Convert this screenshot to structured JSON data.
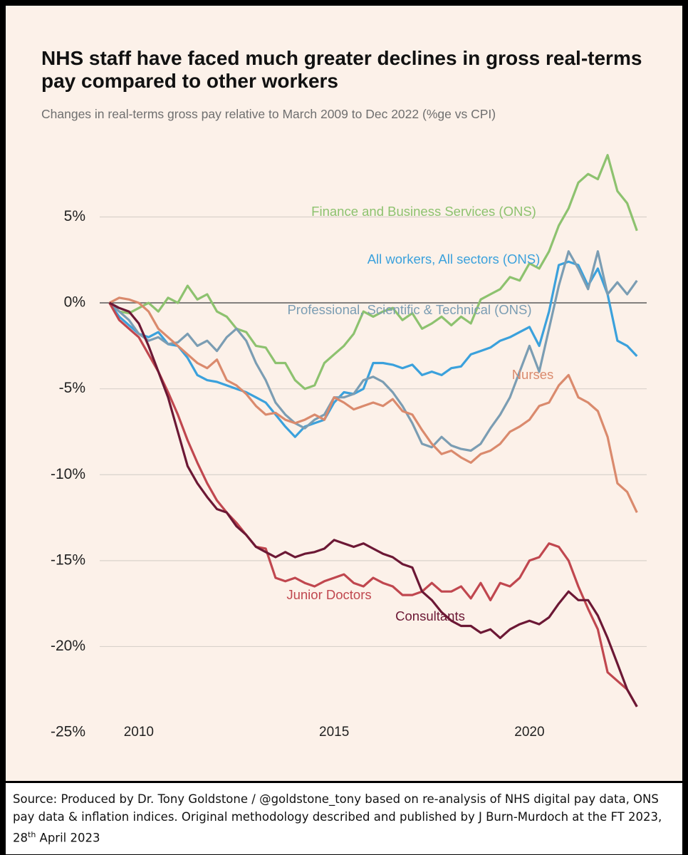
{
  "chart_data": {
    "type": "line",
    "title": "NHS staff have faced much greater declines in gross real-terms pay compared to other workers",
    "subtitle": "Changes in real-terms gross pay relative to March 2009 to Dec 2022 (%ge vs CPI)",
    "source": [
      "Source: Produced by Dr. Tony Goldstone / @goldstone_tony based on re-analysis of NHS digital pay data, ONS pay data & inflation indices. Original methodology described and published by J Burn-Murdoch at the FT 2023, 28",
      "th",
      " April 2023"
    ],
    "x": [
      2009.25,
      2009.5,
      2009.75,
      2010,
      2010.25,
      2010.5,
      2010.75,
      2011,
      2011.25,
      2011.5,
      2011.75,
      2012,
      2012.25,
      2012.5,
      2012.75,
      2013,
      2013.25,
      2013.5,
      2013.75,
      2014,
      2014.25,
      2014.5,
      2014.75,
      2015,
      2015.25,
      2015.5,
      2015.75,
      2016,
      2016.25,
      2016.5,
      2016.75,
      2017,
      2017.25,
      2017.5,
      2017.75,
      2018,
      2018.25,
      2018.5,
      2018.75,
      2019,
      2019.25,
      2019.5,
      2019.75,
      2020,
      2020.25,
      2020.5,
      2020.75,
      2021,
      2021.25,
      2021.5,
      2021.75,
      2022,
      2022.25,
      2022.5,
      2022.75
    ],
    "series": [
      {
        "name": "Finance and Business Services (ONS)",
        "color": "#8dc26f",
        "values": [
          0,
          -0.5,
          -0.6,
          -0.3,
          0,
          -0.5,
          0.3,
          0,
          1.0,
          0.2,
          0.5,
          -0.5,
          -0.8,
          -1.5,
          -1.7,
          -2.5,
          -2.6,
          -3.5,
          -3.5,
          -4.5,
          -5.0,
          -4.8,
          -3.5,
          -3.0,
          -2.5,
          -1.8,
          -0.5,
          -0.8,
          -0.5,
          -0.3,
          -1.0,
          -0.6,
          -1.5,
          -1.2,
          -0.8,
          -1.3,
          -0.8,
          -1.2,
          0.2,
          0.5,
          0.8,
          1.5,
          1.3,
          2.3,
          2.0,
          3.0,
          4.5,
          5.5,
          7.0,
          7.5,
          7.2,
          8.6,
          6.5,
          5.8,
          4.2
        ]
      },
      {
        "name": "All workers, All sectors (ONS)",
        "color": "#3ba1dc",
        "values": [
          0,
          -0.8,
          -1.3,
          -1.8,
          -2.0,
          -1.7,
          -2.4,
          -2.5,
          -3.2,
          -4.2,
          -4.5,
          -4.6,
          -4.8,
          -5.0,
          -5.2,
          -5.5,
          -5.8,
          -6.5,
          -7.2,
          -7.8,
          -7.2,
          -7.0,
          -6.8,
          -5.8,
          -5.2,
          -5.3,
          -5.0,
          -3.5,
          -3.5,
          -3.6,
          -3.8,
          -3.6,
          -4.2,
          -4.0,
          -4.2,
          -3.8,
          -3.7,
          -3.0,
          -2.8,
          -2.6,
          -2.2,
          -2.0,
          -1.7,
          -1.4,
          -2.5,
          -0.5,
          2.2,
          2.4,
          2.2,
          1.0,
          2.0,
          0.5,
          -2.2,
          -2.5,
          -3.1
        ]
      },
      {
        "name": "Professional, Scientific & Technical (ONS)",
        "color": "#7b9db3",
        "values": [
          0,
          -0.5,
          -1.0,
          -1.8,
          -2.2,
          -2.0,
          -2.4,
          -2.3,
          -1.8,
          -2.5,
          -2.2,
          -2.8,
          -2.0,
          -1.5,
          -2.2,
          -3.5,
          -4.5,
          -5.8,
          -6.5,
          -7.0,
          -7.3,
          -6.8,
          -6.5,
          -5.5,
          -5.5,
          -5.3,
          -4.5,
          -4.3,
          -4.6,
          -5.2,
          -6.0,
          -7.0,
          -8.2,
          -8.4,
          -7.8,
          -8.3,
          -8.5,
          -8.6,
          -8.2,
          -7.3,
          -6.5,
          -5.5,
          -4.0,
          -2.5,
          -4.0,
          -1.5,
          1.0,
          3.0,
          2.0,
          0.8,
          3.0,
          0.5,
          1.2,
          0.5,
          1.3
        ]
      },
      {
        "name": "Nurses",
        "color": "#da8a6d",
        "values": [
          0,
          0.3,
          0.2,
          0,
          -0.5,
          -1.5,
          -2.0,
          -2.5,
          -3.0,
          -3.5,
          -3.8,
          -3.3,
          -4.5,
          -4.8,
          -5.3,
          -6.0,
          -6.5,
          -6.4,
          -6.8,
          -7.0,
          -6.8,
          -6.5,
          -6.8,
          -5.5,
          -5.8,
          -6.2,
          -6.0,
          -5.8,
          -6.0,
          -5.6,
          -6.3,
          -6.5,
          -7.4,
          -8.2,
          -8.8,
          -8.6,
          -9.0,
          -9.3,
          -8.8,
          -8.6,
          -8.2,
          -7.5,
          -7.2,
          -6.8,
          -6.0,
          -5.8,
          -4.8,
          -4.2,
          -5.5,
          -5.8,
          -6.3,
          -7.8,
          -10.5,
          -11.0,
          -12.2
        ]
      },
      {
        "name": "Junior Doctors",
        "color": "#c0474f",
        "values": [
          0,
          -1.0,
          -1.5,
          -2.0,
          -3.0,
          -4.0,
          -5.2,
          -6.5,
          -8.0,
          -9.3,
          -10.5,
          -11.5,
          -12.2,
          -12.8,
          -13.5,
          -14.2,
          -14.3,
          -16.0,
          -16.2,
          -16.0,
          -16.3,
          -16.5,
          -16.2,
          -16.0,
          -15.8,
          -16.3,
          -16.5,
          -16.0,
          -16.3,
          -16.5,
          -17.0,
          -17.0,
          -16.8,
          -16.3,
          -16.8,
          -16.8,
          -16.5,
          -17.2,
          -16.3,
          -17.3,
          -16.3,
          -16.5,
          -16.0,
          -15.0,
          -14.8,
          -14.0,
          -14.2,
          -15.0,
          -16.5,
          -17.8,
          -19.0,
          -21.5,
          -22.0,
          -22.5,
          -23.5
        ]
      },
      {
        "name": "Consultants",
        "color": "#6c1835",
        "values": [
          0,
          -0.3,
          -0.5,
          -1.2,
          -2.5,
          -4.0,
          -5.5,
          -7.5,
          -9.5,
          -10.5,
          -11.3,
          -12.0,
          -12.2,
          -13.0,
          -13.5,
          -14.2,
          -14.5,
          -14.8,
          -14.5,
          -14.8,
          -14.6,
          -14.5,
          -14.3,
          -13.8,
          -14.0,
          -14.2,
          -14.0,
          -14.3,
          -14.6,
          -14.8,
          -15.2,
          -15.4,
          -16.8,
          -17.3,
          -18.0,
          -18.5,
          -18.8,
          -18.8,
          -19.2,
          -19.0,
          -19.5,
          -19.0,
          -18.7,
          -18.5,
          -18.7,
          -18.3,
          -17.5,
          -16.8,
          -17.3,
          -17.3,
          -18.2,
          -19.5,
          -21.0,
          -22.5,
          -23.5
        ]
      }
    ],
    "xlim": [
      2009,
      2023
    ],
    "xticks": [
      2010,
      2015,
      2020
    ],
    "ylim": [
      -25,
      9.5
    ],
    "yticks": [
      {
        "value": 5,
        "label": "5%"
      },
      {
        "value": 0,
        "label": "0%"
      },
      {
        "value": -5,
        "label": "-5%"
      },
      {
        "value": -10,
        "label": "-10%"
      },
      {
        "value": -15,
        "label": "-15%"
      },
      {
        "value": -20,
        "label": "-20%"
      },
      {
        "value": -25,
        "label": "-25%"
      }
    ],
    "grid": true
  }
}
